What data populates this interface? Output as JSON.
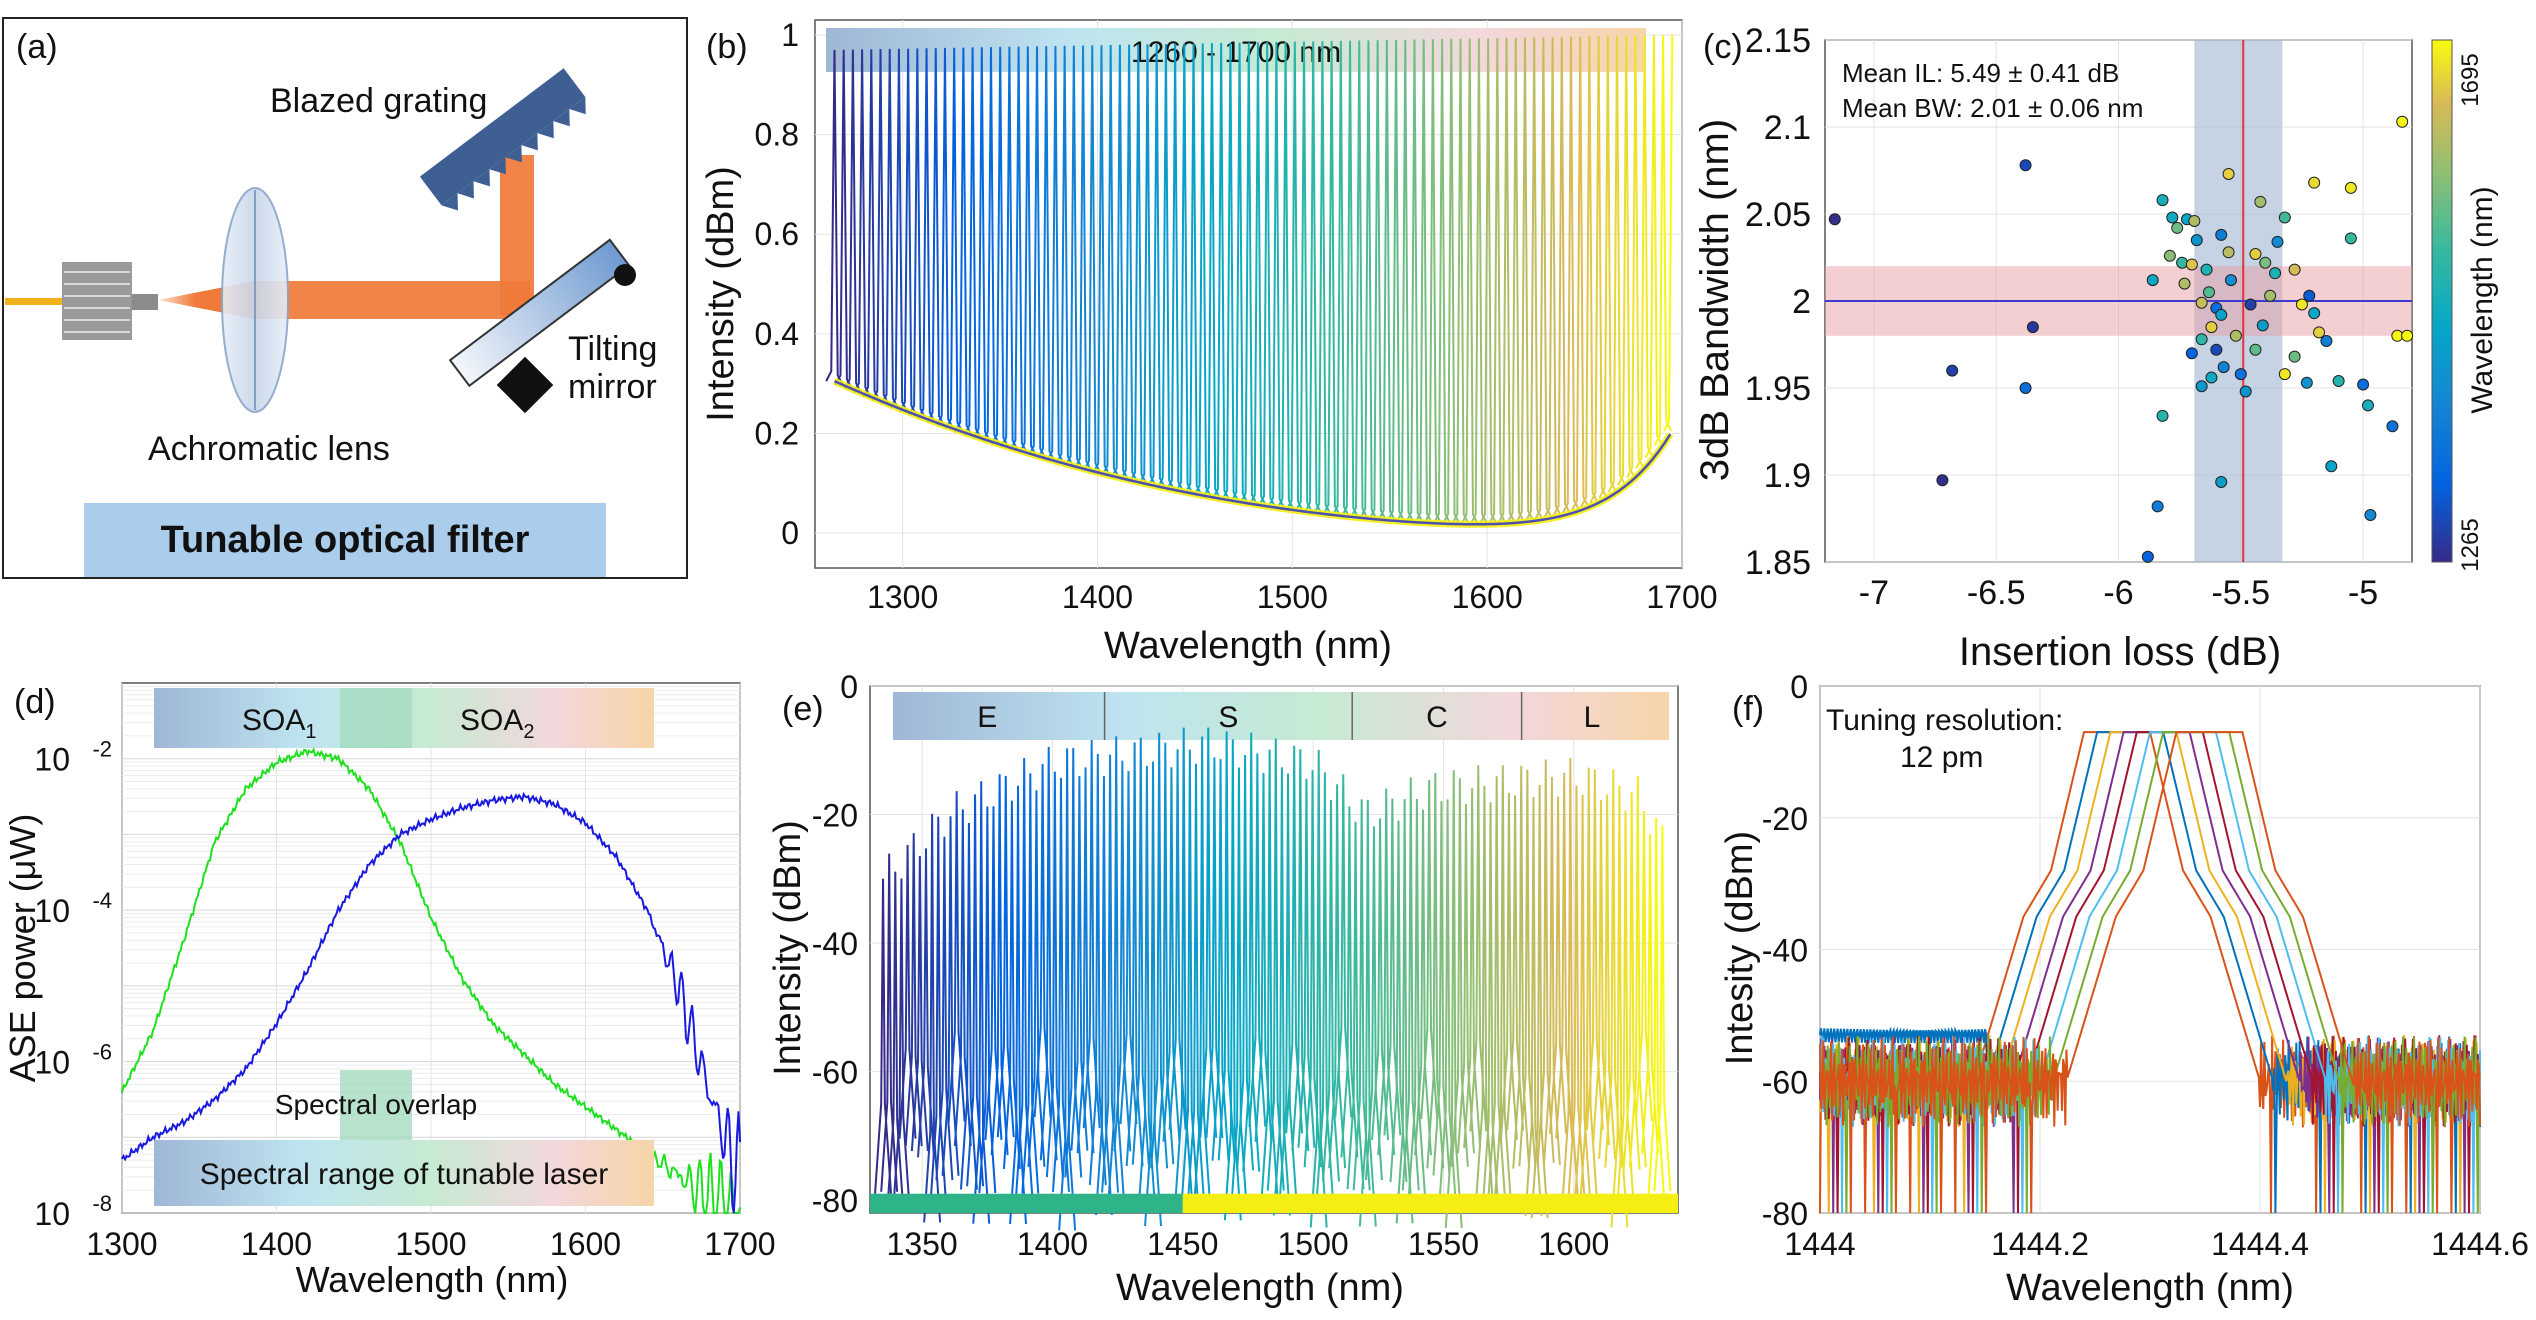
{
  "panel_labels": {
    "a": "(a)",
    "b": "(b)",
    "c": "(c)",
    "d": "(d)",
    "e": "(e)",
    "f": "(f)"
  },
  "schematic": {
    "blazed_grating": "Blazed grating",
    "tilting_mirror_1": "Tilting",
    "tilting_mirror_2": "mirror",
    "achromatic_lens": "Achromatic lens",
    "title": "Tunable optical filter",
    "colors": {
      "beam": "#f07a3a",
      "fiber": "#f2b21c",
      "grating": "#3f5f92",
      "title_box": "#a9cdeb"
    }
  },
  "chart_data": [
    {
      "id": "b",
      "type": "line",
      "band_label": "1260 - 1700 nm",
      "xlabel": "Wavelength (nm)",
      "ylabel": "Intensity (dBm)",
      "xlim": [
        1255,
        1700
      ],
      "ylim": [
        -0.07,
        1.03
      ],
      "xticks": [
        "1300",
        "1400",
        "1500",
        "1600",
        "1700"
      ],
      "yticks": [
        "0",
        "0.2",
        "0.4",
        "0.6",
        "0.8",
        "1"
      ],
      "peak_start_nm": 1265,
      "peak_end_nm": 1695,
      "peak_count": 92,
      "peak_height_start": 0.97,
      "peak_height_end": 1.0,
      "baseline_start": 0.3,
      "baseline_min": 0.0,
      "baseline_end": 0.2
    },
    {
      "id": "c",
      "type": "scatter",
      "stat_il": "Mean IL: 5.49 ± 0.41 dB",
      "stat_bw": "Mean BW: 2.01 ± 0.06 nm",
      "xlabel": "Insertion loss (dB)",
      "ylabel": "3dB Bandwidth (nm)",
      "colorbar_label": "Wavelength (nm)",
      "colorbar_min": "1265",
      "colorbar_max": "1695",
      "xlim": [
        -7.2,
        -4.8
      ],
      "ylim": [
        1.85,
        2.15
      ],
      "xticks": [
        "-7",
        "-6.5",
        "-6",
        "-5.5",
        "-5"
      ],
      "yticks": [
        "1.85",
        "1.9",
        "1.95",
        "2",
        "2.05",
        "2.1",
        "2.15"
      ],
      "mean_il": -5.49,
      "il_band": [
        -5.69,
        -5.33
      ],
      "mean_bw": 2.0,
      "bw_band": [
        1.98,
        2.02
      ],
      "points": [
        {
          "il": -7.16,
          "bw": 2.047,
          "wl": 1268
        },
        {
          "il": -6.72,
          "bw": 1.897,
          "wl": 1270
        },
        {
          "il": -6.68,
          "bw": 1.96,
          "wl": 1290
        },
        {
          "il": -6.38,
          "bw": 2.078,
          "wl": 1300
        },
        {
          "il": -6.38,
          "bw": 1.95,
          "wl": 1350
        },
        {
          "il": -6.35,
          "bw": 1.985,
          "wl": 1280
        },
        {
          "il": -5.88,
          "bw": 1.853,
          "wl": 1330
        },
        {
          "il": -5.84,
          "bw": 1.882,
          "wl": 1380
        },
        {
          "il": -5.82,
          "bw": 1.934,
          "wl": 1500
        },
        {
          "il": -5.58,
          "bw": 1.896,
          "wl": 1440
        },
        {
          "il": -4.97,
          "bw": 1.877,
          "wl": 1400
        },
        {
          "il": -4.88,
          "bw": 1.928,
          "wl": 1360
        },
        {
          "il": -4.84,
          "bw": 2.103,
          "wl": 1690
        },
        {
          "il": -5.05,
          "bw": 2.065,
          "wl": 1680
        },
        {
          "il": -5.2,
          "bw": 2.068,
          "wl": 1670
        },
        {
          "il": -5.55,
          "bw": 2.073,
          "wl": 1660
        },
        {
          "il": -5.42,
          "bw": 2.057,
          "wl": 1600
        },
        {
          "il": -5.82,
          "bw": 2.058,
          "wl": 1480
        },
        {
          "il": -5.78,
          "bw": 2.048,
          "wl": 1470
        },
        {
          "il": -5.76,
          "bw": 2.042,
          "wl": 1560
        },
        {
          "il": -5.72,
          "bw": 2.047,
          "wl": 1460
        },
        {
          "il": -5.69,
          "bw": 2.046,
          "wl": 1610
        },
        {
          "il": -5.68,
          "bw": 2.035,
          "wl": 1420
        },
        {
          "il": -5.74,
          "bw": 2.022,
          "wl": 1520
        },
        {
          "il": -5.79,
          "bw": 2.026,
          "wl": 1580
        },
        {
          "il": -5.7,
          "bw": 2.021,
          "wl": 1650
        },
        {
          "il": -5.64,
          "bw": 2.018,
          "wl": 1490
        },
        {
          "il": -5.63,
          "bw": 2.005,
          "wl": 1540
        },
        {
          "il": -5.66,
          "bw": 1.999,
          "wl": 1630
        },
        {
          "il": -5.6,
          "bw": 1.996,
          "wl": 1350
        },
        {
          "il": -5.58,
          "bw": 1.992,
          "wl": 1450
        },
        {
          "il": -5.54,
          "bw": 2.012,
          "wl": 1410
        },
        {
          "il": -5.55,
          "bw": 2.028,
          "wl": 1620
        },
        {
          "il": -5.58,
          "bw": 2.038,
          "wl": 1380
        },
        {
          "il": -5.62,
          "bw": 1.985,
          "wl": 1660
        },
        {
          "il": -5.66,
          "bw": 1.978,
          "wl": 1510
        },
        {
          "il": -5.6,
          "bw": 1.972,
          "wl": 1300
        },
        {
          "il": -5.57,
          "bw": 1.962,
          "wl": 1390
        },
        {
          "il": -5.62,
          "bw": 1.956,
          "wl": 1470
        },
        {
          "il": -5.66,
          "bw": 1.951,
          "wl": 1430
        },
        {
          "il": -5.5,
          "bw": 1.958,
          "wl": 1360
        },
        {
          "il": -5.48,
          "bw": 1.948,
          "wl": 1420
        },
        {
          "il": -5.44,
          "bw": 1.972,
          "wl": 1550
        },
        {
          "il": -5.41,
          "bw": 1.986,
          "wl": 1440
        },
        {
          "il": -5.38,
          "bw": 2.003,
          "wl": 1600
        },
        {
          "il": -5.36,
          "bw": 2.016,
          "wl": 1490
        },
        {
          "il": -5.4,
          "bw": 2.022,
          "wl": 1570
        },
        {
          "il": -5.35,
          "bw": 2.034,
          "wl": 1400
        },
        {
          "il": -5.32,
          "bw": 2.048,
          "wl": 1530
        },
        {
          "il": -5.28,
          "bw": 2.018,
          "wl": 1640
        },
        {
          "il": -5.25,
          "bw": 1.998,
          "wl": 1680
        },
        {
          "il": -5.22,
          "bw": 2.003,
          "wl": 1320
        },
        {
          "il": -5.2,
          "bw": 1.993,
          "wl": 1460
        },
        {
          "il": -5.18,
          "bw": 1.982,
          "wl": 1660
        },
        {
          "il": -5.15,
          "bw": 1.977,
          "wl": 1380
        },
        {
          "il": -5.28,
          "bw": 1.968,
          "wl": 1560
        },
        {
          "il": -5.32,
          "bw": 1.958,
          "wl": 1680
        },
        {
          "il": -5.23,
          "bw": 1.953,
          "wl": 1420
        },
        {
          "il": -5.1,
          "bw": 1.954,
          "wl": 1500
        },
        {
          "il": -5.0,
          "bw": 1.952,
          "wl": 1350
        },
        {
          "il": -4.98,
          "bw": 1.94,
          "wl": 1480
        },
        {
          "il": -5.13,
          "bw": 1.905,
          "wl": 1450
        },
        {
          "il": -5.05,
          "bw": 2.036,
          "wl": 1520
        },
        {
          "il": -5.46,
          "bw": 1.998,
          "wl": 1290
        },
        {
          "il": -5.52,
          "bw": 1.98,
          "wl": 1610
        },
        {
          "il": -5.44,
          "bw": 2.027,
          "wl": 1660
        },
        {
          "il": -4.86,
          "bw": 1.98,
          "wl": 1690
        },
        {
          "il": -4.82,
          "bw": 1.98,
          "wl": 1695
        },
        {
          "il": -5.7,
          "bw": 1.97,
          "wl": 1330
        },
        {
          "il": -5.73,
          "bw": 2.01,
          "wl": 1610
        },
        {
          "il": -5.86,
          "bw": 2.012,
          "wl": 1460
        }
      ]
    },
    {
      "id": "d",
      "type": "line",
      "xlabel": "Wavelength (nm)",
      "ylabel": "ASE power (μW)",
      "xlim": [
        1300,
        1700
      ],
      "ylim_log10": [
        -8,
        -1
      ],
      "xticks": [
        "1300",
        "1400",
        "1500",
        "1600",
        "1700"
      ],
      "yticks": [
        {
          "base": "10",
          "exp": "-8",
          "v": -8
        },
        {
          "base": "10",
          "exp": "-6",
          "v": -6
        },
        {
          "base": "10",
          "exp": "-4",
          "v": -4
        },
        {
          "base": "10",
          "exp": "-2",
          "v": -2
        }
      ],
      "band_soa1_base": "SOA",
      "band_soa1_sub": "1",
      "band_soa2_base": "SOA",
      "band_soa2_sub": "2",
      "overlap_label": "Spectral  overlap",
      "range_label": "Spectral  range of tunable laser",
      "series": [
        {
          "name": "SOA1",
          "color": "#1fe01f",
          "peak_nm": 1420,
          "peak_log10": -1.9,
          "points": [
            [
              1300,
              -6.4
            ],
            [
              1320,
              -5.6
            ],
            [
              1340,
              -4.4
            ],
            [
              1360,
              -3.1
            ],
            [
              1380,
              -2.4
            ],
            [
              1400,
              -2.05
            ],
            [
              1420,
              -1.9
            ],
            [
              1440,
              -2.0
            ],
            [
              1460,
              -2.4
            ],
            [
              1480,
              -3.1
            ],
            [
              1500,
              -4.1
            ],
            [
              1520,
              -4.9
            ],
            [
              1540,
              -5.5
            ],
            [
              1560,
              -5.9
            ],
            [
              1580,
              -6.3
            ],
            [
              1600,
              -6.6
            ],
            [
              1620,
              -6.9
            ],
            [
              1640,
              -7.2
            ],
            [
              1660,
              -7.5
            ],
            [
              1680,
              -7.8
            ],
            [
              1700,
              -8.0
            ]
          ]
        },
        {
          "name": "SOA2",
          "color": "#1a1adf",
          "peak_nm": 1560,
          "peak_log10": -2.5,
          "points": [
            [
              1300,
              -7.3
            ],
            [
              1320,
              -7.0
            ],
            [
              1340,
              -6.8
            ],
            [
              1360,
              -6.5
            ],
            [
              1380,
              -6.1
            ],
            [
              1400,
              -5.5
            ],
            [
              1420,
              -4.8
            ],
            [
              1440,
              -4.0
            ],
            [
              1460,
              -3.4
            ],
            [
              1480,
              -3.0
            ],
            [
              1500,
              -2.8
            ],
            [
              1520,
              -2.65
            ],
            [
              1540,
              -2.55
            ],
            [
              1560,
              -2.5
            ],
            [
              1580,
              -2.6
            ],
            [
              1600,
              -2.85
            ],
            [
              1620,
              -3.3
            ],
            [
              1640,
              -4.0
            ],
            [
              1660,
              -5.0
            ],
            [
              1680,
              -6.4
            ],
            [
              1690,
              -7.0
            ],
            [
              1700,
              -7.6
            ]
          ]
        }
      ]
    },
    {
      "id": "e",
      "type": "line",
      "xlabel": "Wavelength (nm)",
      "ylabel": "Intensity (dBm)",
      "xlim": [
        1330,
        1640
      ],
      "ylim": [
        -82,
        0
      ],
      "xticks": [
        "1350",
        "1400",
        "1450",
        "1500",
        "1550",
        "1600"
      ],
      "yticks": [
        "-80",
        "-60",
        "-40",
        "-20",
        "0"
      ],
      "bands": [
        {
          "label": "E",
          "from": 1330,
          "to": 1420
        },
        {
          "label": "S",
          "from": 1420,
          "to": 1515
        },
        {
          "label": "C",
          "from": 1515,
          "to": 1580
        },
        {
          "label": "L",
          "from": 1580,
          "to": 1634
        }
      ],
      "peak_start_nm": 1335,
      "peak_end_nm": 1634,
      "peak_count": 128,
      "envelope": [
        [
          1335,
          -30
        ],
        [
          1360,
          -20
        ],
        [
          1400,
          -12
        ],
        [
          1460,
          -9
        ],
        [
          1500,
          -12
        ],
        [
          1520,
          -20
        ],
        [
          1545,
          -16
        ],
        [
          1600,
          -14
        ],
        [
          1625,
          -17
        ],
        [
          1634,
          -24
        ]
      ],
      "floor_db": -80
    },
    {
      "id": "f",
      "type": "line",
      "annotation_1": "Tuning resolution:",
      "annotation_2": "12 pm",
      "xlabel": "Wavelength (nm)",
      "ylabel": "Intesity (dBm)",
      "xlim": [
        1444,
        1444.6
      ],
      "ylim": [
        -80,
        0
      ],
      "xticks": [
        "1444",
        "1444.2",
        "1444.4",
        "1444.6"
      ],
      "yticks": [
        "-80",
        "-60",
        "-40",
        "-20",
        "0"
      ],
      "step_nm": 0.012,
      "series_centers_nm": [
        1444.27,
        1444.282,
        1444.294,
        1444.306,
        1444.318,
        1444.33,
        1444.342,
        1444.354
      ],
      "series_colors": [
        "#d95319",
        "#0072bd",
        "#edb120",
        "#7e2f8e",
        "#a2142f",
        "#4dbeee",
        "#77ac30",
        "#d95319"
      ],
      "peak_db": -7,
      "shoulder_db": -28,
      "floor_db": -60
    }
  ]
}
